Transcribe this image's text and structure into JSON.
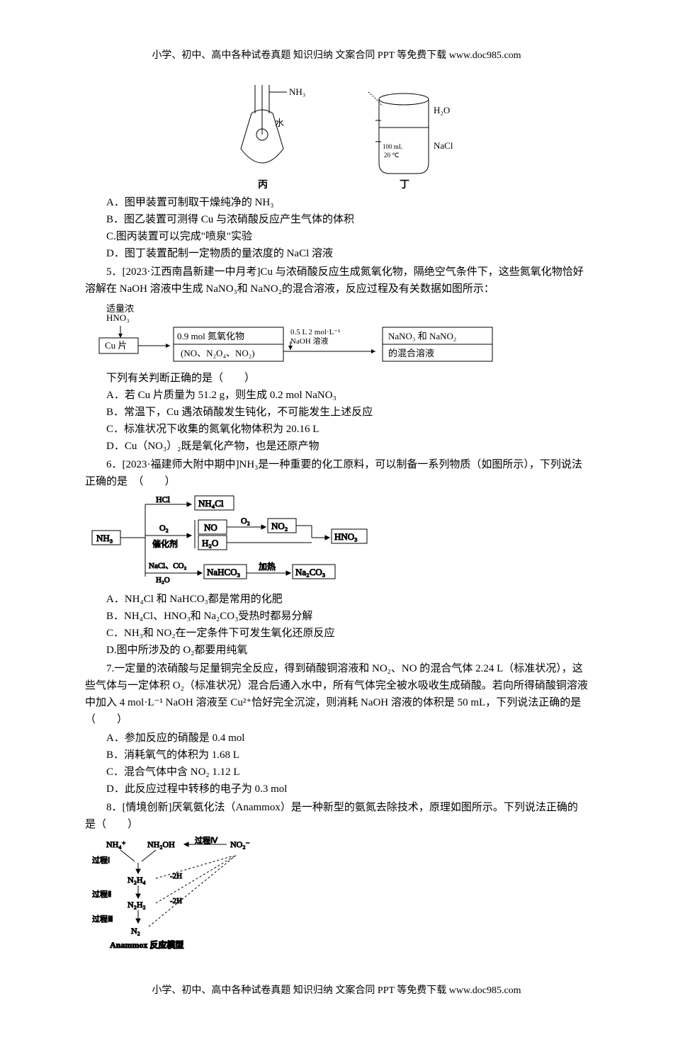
{
  "header": "小学、初中、高中各种试卷真题 知识归纳 文案合同 PPT 等免费下载    www.doc985.com",
  "footer": "小学、初中、高中各种试卷真题 知识归纳 文案合同 PPT 等免费下载    www.doc985.com",
  "topDiagram": {
    "left": {
      "nh3": "NH₃",
      "water": "水",
      "label": "丙"
    },
    "right": {
      "h2o": "H₂O",
      "vol": "100 mL",
      "temp": "20 ℃",
      "nacl": "NaCl",
      "label": "丁"
    }
  },
  "q4": {
    "A": "A．图甲装置可制取干燥纯净的 NH₃",
    "B": "B．图乙装置可测得 Cu 与浓硝酸反应产生气体的体积",
    "C": "C.图丙装置可以完成\"喷泉\"实验",
    "D": "D．图丁装置配制一定物质的量浓度的 NaCl 溶液"
  },
  "q5": {
    "stem1": "　　5．[2023·江西南昌新建一中月考]Cu 与浓硝酸反应生成氮氧化物，隔绝空气条件下，这些氮氧化物恰好溶解在 NaOH 溶液中生成 NaNO₃和 NaNO₂的混合溶液，反应过程及有关数据如图所示：",
    "flow": {
      "hno3": "适量浓\nHNO₃",
      "cu": "Cu 片",
      "box1a": "0.9 mol 氮氧化物",
      "box1b": "(NO、N₂O₄、NO₂)",
      "mid": "0.5 L 2 mol·L⁻¹\nNaOH 溶液",
      "box2a": "NaNO₃ 和 NaNO₂",
      "box2b": "的混合溶液"
    },
    "stem2": "下列有关判断正确的是（　　）",
    "A": "A．若 Cu 片质量为 51.2 g，则生成 0.2 mol NaNO₃",
    "B": "B．常温下，Cu 遇浓硝酸发生钝化，不可能发生上述反应",
    "C": "C．标准状况下收集的氮氧化物体积为 20.16 L",
    "D": "D．Cu（NO₃）₂既是氧化产物，也是还原产物"
  },
  "q6": {
    "stem": "　　6．[2023·福建师大附中期中]NH₃是一种重要的化工原料，可以制备一系列物质（如图所示），下列说法正确的是　（　　）",
    "chem": {
      "nh3": "NH₃",
      "hcl": "HCl",
      "nh4cl": "NH₄Cl",
      "o2a": "O₂",
      "cat": "催化剂",
      "no": "NO",
      "h2o": "H₂O",
      "o2b": "O₂",
      "no2": "NO₂",
      "hno3": "HNO₃",
      "nacl": "NaCl、CO₂",
      "h2ob": "H₂O",
      "nahco3": "NaHCO₃",
      "heat": "加热",
      "na2co3": "Na₂CO₃"
    },
    "A": "A．NH₄Cl 和 NaHCO₃都是常用的化肥",
    "B": "B．NH₄Cl、HNO₃和 Na₂CO₃受热时都易分解",
    "C": "C．NH₃和 NO₂在一定条件下可发生氧化还原反应",
    "D": "D.图中所涉及的 O₂都要用纯氧"
  },
  "q7": {
    "stem": "　　7.一定量的浓硝酸与足量铜完全反应，得到硝酸铜溶液和 NO₂、NO 的混合气体 2.24 L（标准状况），这些气体与一定体积 O₂（标准状况）混合后通入水中，所有气体完全被水吸收生成硝酸。若向所得硝酸铜溶液中加入 4 mol·L⁻¹ NaOH 溶液至 Cu²⁺恰好完全沉淀，则消耗 NaOH 溶液的体积是 50 mL，下列说法正确的是（　　）",
    "A": "A．参加反应的硝酸是 0.4 mol",
    "B": "B．消耗氧气的体积为 1.68 L",
    "C": "C．混合气体中含 NO₂ 1.12 L",
    "D": "D．此反应过程中转移的电子为 0.3 mol"
  },
  "q8": {
    "stem": "　　8．[情境创新]厌氧氨化法（Anammox）是一种新型的氨氮去除技术，原理如图所示。下列说法正确的是（　　）",
    "model": {
      "nh4": "NH₄⁺",
      "nh2oh": "NH₂OH",
      "proc4": "过程Ⅳ",
      "no2": "NO₂⁻",
      "proc1": "过程Ⅰ",
      "n2h4": "N₂H₄",
      "m2h1": "-2H",
      "proc2": "过程Ⅱ",
      "n2h2": "N₂H₂",
      "m2h2": "-2H",
      "proc3": "过程Ⅲ",
      "n2": "N₂",
      "title": "Anammox 反应模型"
    }
  },
  "colors": {
    "text": "#000000",
    "bg": "#ffffff",
    "line": "#000000"
  }
}
